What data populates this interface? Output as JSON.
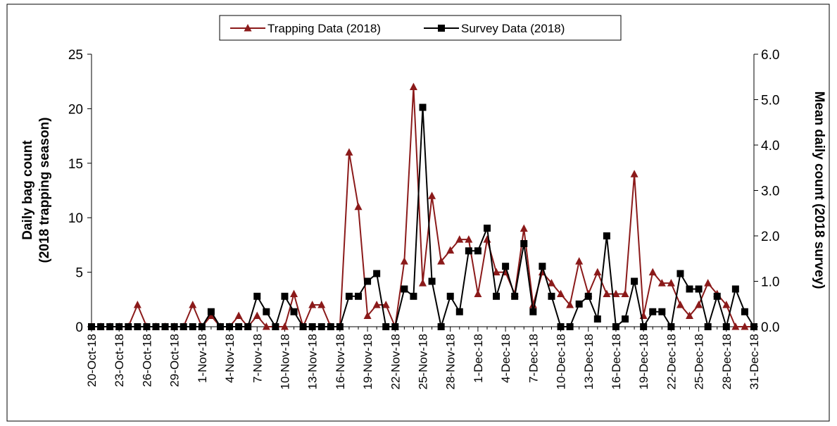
{
  "chart_data": {
    "type": "line",
    "ylabel": [
      "Daily bag count",
      "(2018 trapping season)"
    ],
    "y2label": "Mean daily count (2018 survey)",
    "categories": [
      "20-Oct-18",
      null,
      null,
      "23-Oct-18",
      null,
      null,
      "26-Oct-18",
      null,
      null,
      "29-Oct-18",
      null,
      null,
      "1-Nov-18",
      null,
      null,
      "4-Nov-18",
      null,
      null,
      "7-Nov-18",
      null,
      null,
      "10-Nov-18",
      null,
      null,
      "13-Nov-18",
      null,
      null,
      "16-Nov-18",
      null,
      null,
      "19-Nov-18",
      null,
      null,
      "22-Nov-18",
      null,
      null,
      "25-Nov-18",
      null,
      null,
      "28-Nov-18",
      null,
      null,
      "1-Dec-18",
      null,
      null,
      "4-Dec-18",
      null,
      null,
      "7-Dec-18",
      null,
      null,
      "10-Dec-18",
      null,
      null,
      "13-Dec-18",
      null,
      null,
      "16-Dec-18",
      null,
      null,
      "19-Dec-18",
      null,
      null,
      "22-Dec-18",
      null,
      null,
      "25-Dec-18",
      null,
      null,
      "28-Dec-18",
      null,
      null,
      "31-Dec-18"
    ],
    "ylim": [
      0,
      25
    ],
    "yticks": [
      0,
      5,
      10,
      15,
      20,
      25
    ],
    "y2lim": [
      0,
      6
    ],
    "y2ticks": [
      {
        "value": 0,
        "label": "0.0"
      },
      {
        "value": 1,
        "label": "1.0"
      },
      {
        "value": 2,
        "label": "2.0"
      },
      {
        "value": 3,
        "label": "3.0"
      },
      {
        "value": 4,
        "label": "4.0"
      },
      {
        "value": 5,
        "label": "5.0"
      },
      {
        "value": 6,
        "label": "6.0"
      }
    ],
    "series": [
      {
        "name": "Trapping Data (2018)",
        "color": "#8b1a1a",
        "marker": "triangle",
        "values": [
          0,
          0,
          0,
          0,
          0,
          2,
          0,
          0,
          0,
          0,
          0,
          2,
          0,
          1,
          0,
          0,
          1,
          0,
          1,
          0,
          0,
          0,
          3,
          0,
          2,
          2,
          0,
          0,
          16,
          11,
          1,
          2,
          2,
          0,
          6,
          22,
          4,
          12,
          6,
          7,
          8,
          8,
          3,
          8,
          5,
          5,
          3,
          9,
          2,
          5,
          4,
          3,
          2,
          6,
          3,
          5,
          3,
          3,
          3,
          14,
          1,
          5,
          4,
          4,
          2,
          1,
          2,
          4,
          3,
          2,
          0,
          0,
          0
        ]
      },
      {
        "name": "Survey Data (2018)",
        "color": "#000000",
        "marker": "square",
        "axis": "y2",
        "values": [
          0,
          0,
          0,
          0,
          0,
          0,
          0,
          0,
          0,
          0,
          0,
          0,
          0,
          0.33,
          0,
          0,
          0,
          0,
          0.67,
          0.33,
          0,
          0.67,
          0.33,
          0,
          0,
          0,
          0,
          0,
          0.67,
          0.67,
          1.0,
          1.17,
          0,
          0,
          0.83,
          0.67,
          4.83,
          1.0,
          0,
          0.67,
          0.33,
          1.67,
          1.67,
          2.17,
          0.67,
          1.33,
          0.67,
          1.83,
          0.33,
          1.33,
          0.67,
          0,
          0,
          0.5,
          0.67,
          0.17,
          2.0,
          0,
          0.17,
          1.0,
          0,
          0.33,
          0.33,
          0,
          1.17,
          0.83,
          0.83,
          0,
          0.67,
          0,
          0.83,
          0.33,
          0
        ]
      }
    ]
  }
}
